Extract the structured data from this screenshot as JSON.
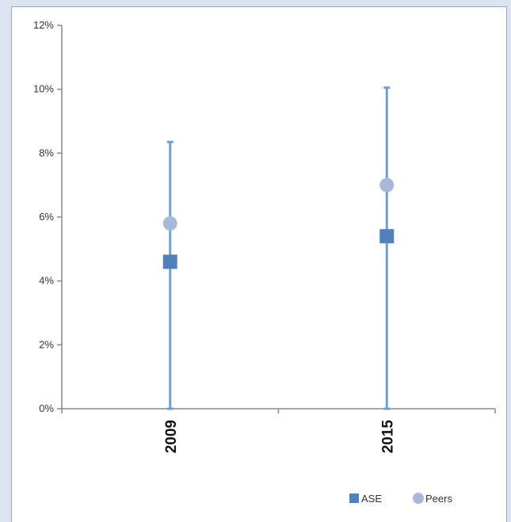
{
  "chart_data": {
    "type": "scatter",
    "categories": [
      "2009",
      "2015"
    ],
    "series": [
      {
        "name": "ASE",
        "marker": "square",
        "color": "#4f81bd",
        "values": [
          4.6,
          5.4
        ]
      },
      {
        "name": "Peers",
        "marker": "circle",
        "color": "#a7b9d9",
        "values": [
          5.8,
          7.0
        ]
      }
    ],
    "error_bars": [
      {
        "category": "2009",
        "low": 0,
        "high": 8.35
      },
      {
        "category": "2015",
        "low": 0,
        "high": 10.05
      }
    ],
    "error_bar_color": "#6f9fd3",
    "ylim": [
      0,
      12
    ],
    "yticks": [
      0,
      2,
      4,
      6,
      8,
      10,
      12
    ],
    "ytick_format": "%",
    "ytick_labels": [
      "0%",
      "2%",
      "4%",
      "6%",
      "8%",
      "10%",
      "12%"
    ],
    "title": "",
    "xlabel": "",
    "ylabel": "",
    "grid": false,
    "legend_position": "bottom-right"
  },
  "legend": {
    "items": [
      {
        "label": "ASE",
        "marker": "square",
        "color": "#4f81bd"
      },
      {
        "label": "Peers",
        "marker": "circle",
        "color": "#a7b9d9"
      }
    ]
  }
}
